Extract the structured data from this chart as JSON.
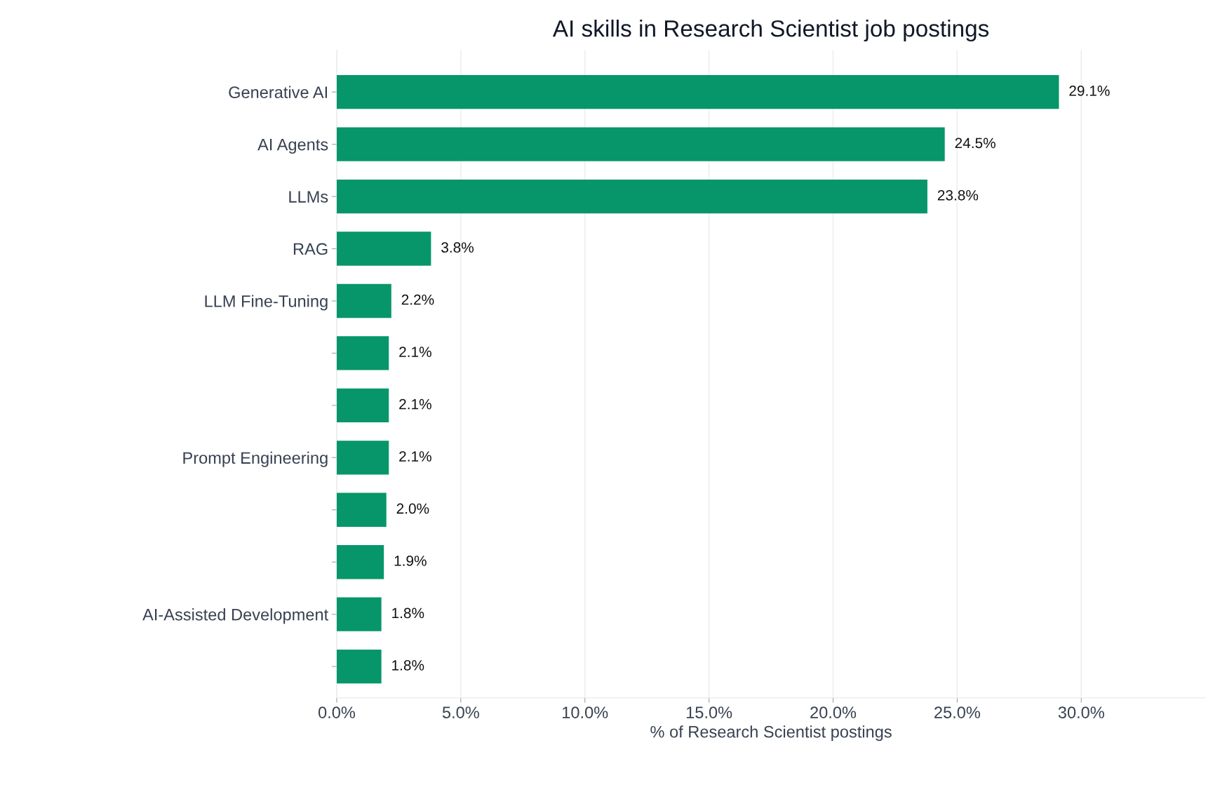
{
  "chart_data": {
    "type": "bar",
    "orientation": "horizontal",
    "title": "AI skills in Research Scientist job postings",
    "xlabel": "% of Research Scientist postings",
    "categories": [
      "Generative AI",
      "AI Agents",
      "LLMs",
      "RAG",
      "LLM Fine-Tuning",
      null,
      null,
      "Prompt Engineering",
      null,
      null,
      "AI-Assisted Development",
      null
    ],
    "values": [
      29.1,
      24.5,
      23.8,
      3.8,
      2.2,
      2.1,
      2.1,
      2.1,
      2.0,
      1.9,
      1.8,
      1.8
    ],
    "value_labels": [
      "29.1%",
      "24.5%",
      "23.8%",
      "3.8%",
      "2.2%",
      "2.1%",
      "2.1%",
      "2.1%",
      "2.0%",
      "1.9%",
      "1.8%",
      "1.8%"
    ],
    "color": "#079669",
    "xlim": [
      0,
      35
    ],
    "xticks": [
      {
        "value": 0,
        "label": "0.0%"
      },
      {
        "value": 5,
        "label": "5.0%"
      },
      {
        "value": 10,
        "label": "10.0%"
      },
      {
        "value": 15,
        "label": "15.0%"
      },
      {
        "value": 20,
        "label": "20.0%"
      },
      {
        "value": 25,
        "label": "25.0%"
      },
      {
        "value": 30,
        "label": "30.0%"
      }
    ],
    "grid": "x",
    "legend": false
  }
}
